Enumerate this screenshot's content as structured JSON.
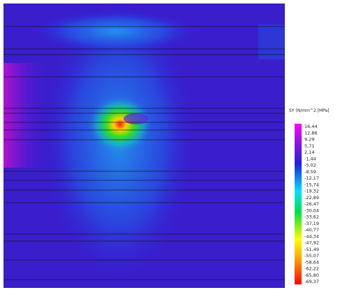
{
  "legend": {
    "title": "SY (N/mm^2 [MPa]",
    "labels": [
      "16,44",
      "12,86",
      "9,29",
      "5,71",
      "2,14",
      "-1,44",
      "-5,02",
      "-8,59",
      "-12,17",
      "-15,74",
      "-19,32",
      "-22,89",
      "-26,47",
      "-30,04",
      "-33,62",
      "-37,19",
      "-40,77",
      "-44,34",
      "-47,92",
      "-51,49",
      "-55,07",
      "-58,64",
      "-62,22",
      "-65,80",
      "-69,37"
    ]
  }
}
